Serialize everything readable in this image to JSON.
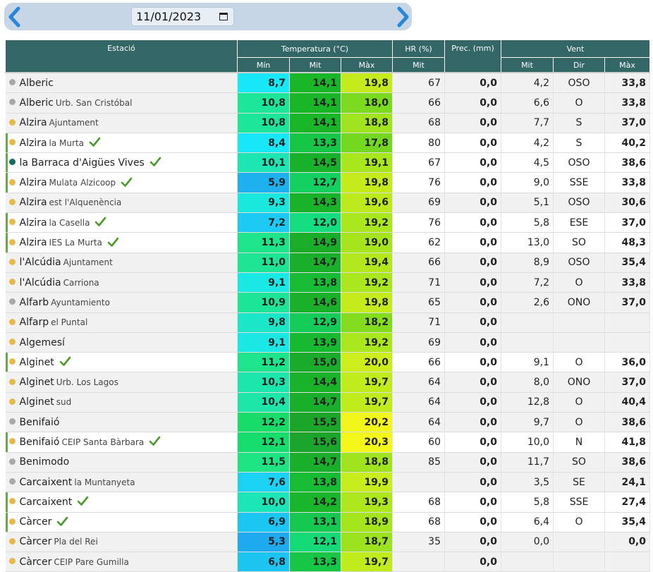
{
  "date_nav": {
    "date_value": "11/01/2023",
    "prev_icon": "chevron-left-icon",
    "next_icon": "chevron-right-icon",
    "calendar_icon": "calendar-icon"
  },
  "colors": {
    "header_bg": "#336666",
    "dot_yellow": "#e8b84a",
    "dot_gray": "#a8a8a8",
    "dot_teal": "#0e6b60",
    "check": "#4a9a2a"
  },
  "headers": {
    "station": "Estació",
    "temperature": "Temperatura (°C)",
    "humidity": "HR (%)",
    "precipitation": "Prec. (mm)",
    "wind": "Vent",
    "t_min": "Mín",
    "t_mit": "Mit",
    "t_max": "Màx",
    "hr_mit": "Mit",
    "w_mit": "Mit",
    "w_dir": "Dir",
    "w_max": "Màx"
  },
  "rows": [
    {
      "name": "Alberic",
      "sub": "",
      "dot": "gray",
      "check": false,
      "tmin": "8,7",
      "tmin_c": "#18e8f6",
      "tmit": "14,1",
      "tmit_c": "#19b628",
      "tmax": "19,8",
      "tmax_c": "#c4ec1c",
      "hr": "67",
      "prec": "0,0",
      "wmit": "4,2",
      "wdir": "OSO",
      "wmax": "33,8"
    },
    {
      "name": "Alberic",
      "sub": "Urb. San Cristóbal",
      "dot": "gray",
      "check": false,
      "tmin": "10,8",
      "tmin_c": "#1de59a",
      "tmit": "14,1",
      "tmit_c": "#19b628",
      "tmax": "18,0",
      "tmax_c": "#7bda1f",
      "hr": "66",
      "prec": "0,0",
      "wmit": "6,6",
      "wdir": "O",
      "wmax": "33,8"
    },
    {
      "name": "Alzira",
      "sub": "Ajuntament",
      "dot": "yellow",
      "check": false,
      "tmin": "10,8",
      "tmin_c": "#1de59a",
      "tmit": "14,1",
      "tmit_c": "#19b628",
      "tmax": "18,8",
      "tmax_c": "#a0e41f",
      "hr": "68",
      "prec": "0,0",
      "wmit": "7,7",
      "wdir": "S",
      "wmax": "37,0"
    },
    {
      "name": "Alzira",
      "sub": "la Murta",
      "dot": "yellow",
      "check": true,
      "tmin": "8,4",
      "tmin_c": "#18e8f6",
      "tmit": "13,3",
      "tmit_c": "#16c646",
      "tmax": "17,8",
      "tmax_c": "#73d81f",
      "hr": "80",
      "prec": "0,0",
      "wmit": "4,2",
      "wdir": "S",
      "wmax": "40,2"
    },
    {
      "name": "la Barraca d'Aigües Vives",
      "sub": "",
      "dot": "teal",
      "check": true,
      "tmin": "10,1",
      "tmin_c": "#1de6b4",
      "tmit": "14,5",
      "tmit_c": "#1ab12a",
      "tmax": "19,1",
      "tmax_c": "#a8e61e",
      "hr": "67",
      "prec": "0,0",
      "wmit": "4,5",
      "wdir": "OSO",
      "wmax": "38,6"
    },
    {
      "name": "Alzira",
      "sub": "Mulata Alzicoop",
      "dot": "yellow",
      "check": true,
      "tmin": "5,9",
      "tmin_c": "#1eb1f0",
      "tmit": "12,7",
      "tmit_c": "#14d060",
      "tmax": "19,8",
      "tmax_c": "#c4ec1c",
      "hr": "76",
      "prec": "0,0",
      "wmit": "9,0",
      "wdir": "SSE",
      "wmax": "33,8"
    },
    {
      "name": "Alzira",
      "sub": "est l'Alquenència",
      "dot": "yellow",
      "check": false,
      "tmin": "9,3",
      "tmin_c": "#1ae8dc",
      "tmit": "14,3",
      "tmit_c": "#19b329",
      "tmax": "19,6",
      "tmax_c": "#bcea1d",
      "hr": "69",
      "prec": "0,0",
      "wmit": "5,1",
      "wdir": "OSO",
      "wmax": "30,6"
    },
    {
      "name": "Alzira",
      "sub": "la Casella",
      "dot": "yellow",
      "check": true,
      "tmin": "7,2",
      "tmin_c": "#1ccaf4",
      "tmit": "12,0",
      "tmit_c": "#14dd80",
      "tmax": "19,2",
      "tmax_c": "#aae71e",
      "hr": "76",
      "prec": "0,0",
      "wmit": "5,8",
      "wdir": "ESE",
      "wmax": "37,0"
    },
    {
      "name": "Alzira",
      "sub": "IES La Murta",
      "dot": "yellow",
      "check": true,
      "tmin": "11,3",
      "tmin_c": "#1ee48a",
      "tmit": "14,9",
      "tmit_c": "#1aad2a",
      "tmax": "19,0",
      "tmax_c": "#a6e51e",
      "hr": "62",
      "prec": "0,0",
      "wmit": "13,0",
      "wdir": "SO",
      "wmax": "48,3"
    },
    {
      "name": "l'Alcúdia",
      "sub": "Ajuntament",
      "dot": "yellow",
      "check": false,
      "tmin": "11,0",
      "tmin_c": "#1ee594",
      "tmit": "14,7",
      "tmit_c": "#1aaf2a",
      "tmax": "19,4",
      "tmax_c": "#b3e81e",
      "hr": "66",
      "prec": "0,0",
      "wmit": "8,9",
      "wdir": "OSO",
      "wmax": "35,4"
    },
    {
      "name": "l'Alcúdia",
      "sub": "Carriona",
      "dot": "yellow",
      "check": false,
      "tmin": "9,1",
      "tmin_c": "#1ae8e4",
      "tmit": "13,8",
      "tmit_c": "#17bb34",
      "tmax": "19,2",
      "tmax_c": "#aae71e",
      "hr": "71",
      "prec": "0,0",
      "wmit": "7,2",
      "wdir": "O",
      "wmax": "33,8"
    },
    {
      "name": "Alfarb",
      "sub": "Ayuntamiento",
      "dot": "gray",
      "check": false,
      "tmin": "10,9",
      "tmin_c": "#1de598",
      "tmit": "14,6",
      "tmit_c": "#1ab02a",
      "tmax": "19,8",
      "tmax_c": "#c4ec1c",
      "hr": "65",
      "prec": "0,0",
      "wmit": "2,6",
      "wdir": "ONO",
      "wmax": "37,0"
    },
    {
      "name": "Alfarp",
      "sub": "el Puntal",
      "dot": "yellow",
      "check": false,
      "tmin": "9,8",
      "tmin_c": "#1be7c8",
      "tmit": "12,9",
      "tmit_c": "#15cc58",
      "tmax": "18,2",
      "tmax_c": "#84dc1f",
      "hr": "71",
      "prec": "0,0",
      "wmit": "",
      "wdir": "",
      "wmax": ""
    },
    {
      "name": "Algemesí",
      "sub": "",
      "dot": "yellow",
      "check": false,
      "tmin": "9,1",
      "tmin_c": "#1ae8e4",
      "tmit": "13,9",
      "tmit_c": "#17b930",
      "tmax": "19,2",
      "tmax_c": "#aae71e",
      "hr": "69",
      "prec": "0,0",
      "wmit": "",
      "wdir": "",
      "wmax": ""
    },
    {
      "name": "Alginet",
      "sub": "",
      "dot": "yellow",
      "check": true,
      "tmin": "11,2",
      "tmin_c": "#1ee48c",
      "tmit": "15,0",
      "tmit_c": "#1aab2a",
      "tmax": "20,0",
      "tmax_c": "#cdee1c",
      "hr": "66",
      "prec": "0,0",
      "wmit": "9,1",
      "wdir": "O",
      "wmax": "36,0"
    },
    {
      "name": "Alginet",
      "sub": "Urb. Los Lagos",
      "dot": "yellow",
      "check": false,
      "tmin": "10,3",
      "tmin_c": "#1de6ac",
      "tmit": "14,4",
      "tmit_c": "#19b229",
      "tmax": "19,7",
      "tmax_c": "#c0eb1d",
      "hr": "64",
      "prec": "0,0",
      "wmit": "8,0",
      "wdir": "ONO",
      "wmax": "37,0"
    },
    {
      "name": "Alginet",
      "sub": "sud",
      "dot": "yellow",
      "check": false,
      "tmin": "10,4",
      "tmin_c": "#1de6a8",
      "tmit": "14,7",
      "tmit_c": "#1aaf2a",
      "tmax": "19,7",
      "tmax_c": "#c0eb1d",
      "hr": "64",
      "prec": "0,0",
      "wmit": "12,8",
      "wdir": "O",
      "wmax": "40,4"
    },
    {
      "name": "Benifaió",
      "sub": "",
      "dot": "gray",
      "check": false,
      "tmin": "12,2",
      "tmin_c": "#17dc6a",
      "tmit": "15,5",
      "tmit_c": "#1ba62a",
      "tmax": "20,2",
      "tmax_c": "#f2f61a",
      "hr": "64",
      "prec": "0,0",
      "wmit": "9,7",
      "wdir": "O",
      "wmax": "38,6"
    },
    {
      "name": "Benifaió",
      "sub": "CEIP Santa Bàrbara",
      "dot": "yellow",
      "check": true,
      "tmin": "12,1",
      "tmin_c": "#17dd6c",
      "tmit": "15,6",
      "tmit_c": "#1ba52a",
      "tmax": "20,3",
      "tmax_c": "#f4f71a",
      "hr": "60",
      "prec": "0,0",
      "wmit": "10,0",
      "wdir": "N",
      "wmax": "41,8"
    },
    {
      "name": "Benimodo",
      "sub": "",
      "dot": "gray",
      "check": false,
      "tmin": "11,5",
      "tmin_c": "#1ee484",
      "tmit": "14,7",
      "tmit_c": "#1aaf2a",
      "tmax": "18,8",
      "tmax_c": "#a0e41f",
      "hr": "85",
      "prec": "0,0",
      "wmit": "11,7",
      "wdir": "SO",
      "wmax": "38,6"
    },
    {
      "name": "Carcaixent",
      "sub": "la Muntanyeta",
      "dot": "gray",
      "check": false,
      "tmin": "7,6",
      "tmin_c": "#1cd2f4",
      "tmit": "13,8",
      "tmit_c": "#17bb34",
      "tmax": "19,9",
      "tmax_c": "#c8ed1c",
      "hr": "",
      "prec": "0,0",
      "wmit": "3,5",
      "wdir": "SE",
      "wmax": "24,1"
    },
    {
      "name": "Carcaixent",
      "sub": "",
      "dot": "yellow",
      "check": true,
      "tmin": "10,0",
      "tmin_c": "#1ce6b8",
      "tmit": "14,2",
      "tmit_c": "#19b52a",
      "tmax": "19,3",
      "tmax_c": "#aee71e",
      "hr": "68",
      "prec": "0,0",
      "wmit": "5,8",
      "wdir": "SSE",
      "wmax": "27,4"
    },
    {
      "name": "Càrcer",
      "sub": "",
      "dot": "yellow",
      "check": true,
      "tmin": "6,9",
      "tmin_c": "#1cc6f2",
      "tmit": "13,1",
      "tmit_c": "#16c850",
      "tmax": "18,9",
      "tmax_c": "#a4e51e",
      "hr": "68",
      "prec": "0,0",
      "wmit": "6,4",
      "wdir": "O",
      "wmax": "35,4"
    },
    {
      "name": "Càrcer",
      "sub": "Pla del Rei",
      "dot": "yellow",
      "check": false,
      "tmin": "5,3",
      "tmin_c": "#1faaf0",
      "tmit": "12,1",
      "tmit_c": "#14da78",
      "tmax": "18,7",
      "tmax_c": "#9ce21f",
      "hr": "35",
      "prec": "0,0",
      "wmit": "0,0",
      "wdir": "",
      "wmax": "0,0"
    },
    {
      "name": "Càrcer",
      "sub": "CEIP Pare Gumilla",
      "dot": "yellow",
      "check": false,
      "tmin": "6,8",
      "tmin_c": "#1cc4f2",
      "tmit": "13,3",
      "tmit_c": "#16c646",
      "tmax": "19,7",
      "tmax_c": "#c0eb1d",
      "hr": "",
      "prec": "0,0",
      "wmit": "",
      "wdir": "",
      "wmax": ""
    }
  ]
}
